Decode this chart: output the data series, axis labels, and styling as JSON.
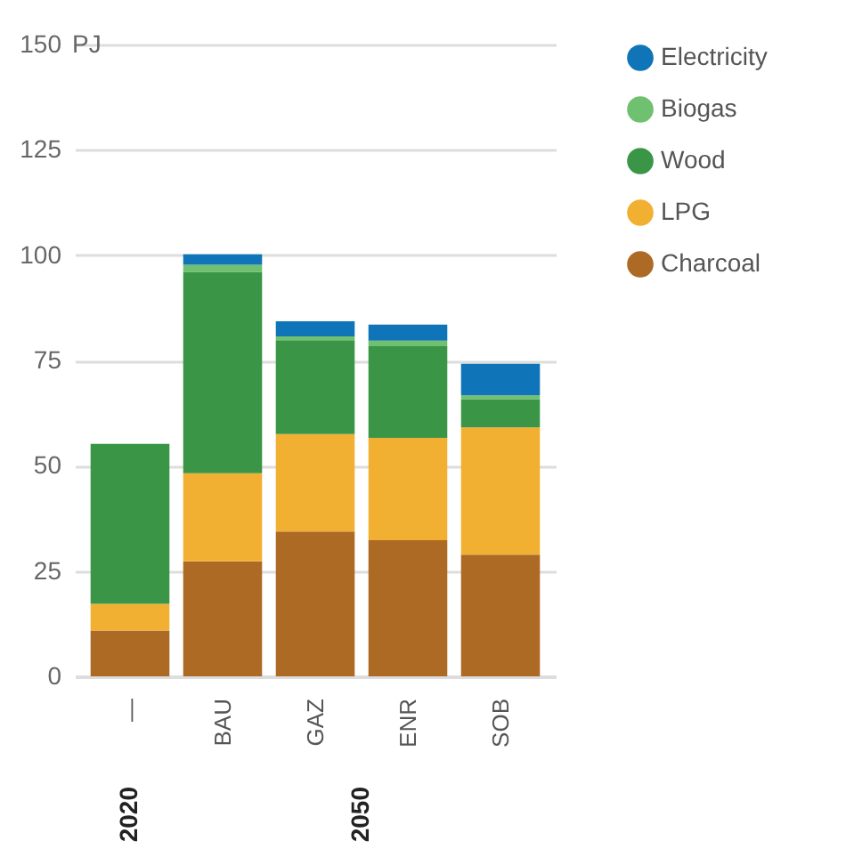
{
  "chart_data": {
    "type": "bar",
    "stacked": true,
    "ylabel": "PJ",
    "categories": [
      "—",
      "BAU",
      "GAZ",
      "ENR",
      "SOB"
    ],
    "series": [
      {
        "name": "Charcoal",
        "color": "#ac6a25",
        "values": [
          10.9,
          27.3,
          34.4,
          32.3,
          28.9
        ]
      },
      {
        "name": "LPG",
        "color": "#f2b032",
        "values": [
          6.3,
          20.9,
          23.1,
          24.3,
          30.2
        ]
      },
      {
        "name": "Wood",
        "color": "#3a9646",
        "values": [
          38.0,
          47.8,
          22.3,
          21.8,
          6.7
        ]
      },
      {
        "name": "Biogas",
        "color": "#6fc06f",
        "values": [
          null,
          1.7,
          0.9,
          1.3,
          0.9
        ]
      },
      {
        "name": "Electricity",
        "color": "#1075b8",
        "values": [
          null,
          2.5,
          3.6,
          3.8,
          7.5
        ]
      }
    ],
    "ylim": [
      0,
      150
    ],
    "yticks": [
      0,
      25,
      50,
      75,
      100,
      125,
      150
    ],
    "grid": "y",
    "legend": "right",
    "annotations": [
      "2020",
      "2050"
    ]
  }
}
